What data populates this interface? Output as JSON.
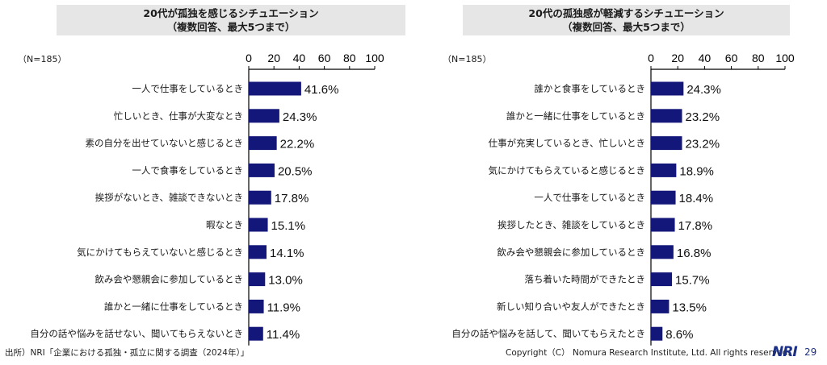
{
  "colors": {
    "bar": "#14177a",
    "title_bg": "#e6e6e6",
    "logo": "#1c2f86"
  },
  "chart_data": [
    {
      "type": "bar",
      "orientation": "horizontal",
      "title_lines": [
        "20代が孤独を感じるシチュエーション",
        "（複数回答、最大5つまで）"
      ],
      "sample_label": "（N=185）",
      "xlim": [
        0,
        100
      ],
      "xticks": [
        "0",
        "20",
        "40",
        "60",
        "80",
        "100"
      ],
      "grid": false,
      "categories": [
        "一人で仕事をしているとき",
        "忙しいとき、仕事が大変なとき",
        "素の自分を出せていないと感じるとき",
        "一人で食事をしているとき",
        "挨拶がないとき、雑談できないとき",
        "暇なとき",
        "気にかけてもらえていないと感じるとき",
        "飲み会や懇親会に参加しているとき",
        "誰かと一緒に仕事をしているとき",
        "自分の話や悩みを話せない、聞いてもらえないとき"
      ],
      "values": [
        41.6,
        24.3,
        22.2,
        20.5,
        17.8,
        15.1,
        14.1,
        13.0,
        11.9,
        11.4
      ],
      "value_labels": [
        "41.6%",
        "24.3%",
        "22.2%",
        "20.5%",
        "17.8%",
        "15.1%",
        "14.1%",
        "13.0%",
        "11.9%",
        "11.4%"
      ]
    },
    {
      "type": "bar",
      "orientation": "horizontal",
      "title_lines": [
        "20代の孤独感が軽減するシチュエーション",
        "（複数回答、最大5つまで）"
      ],
      "sample_label": "（N=185）",
      "xlim": [
        0,
        100
      ],
      "xticks": [
        "0",
        "20",
        "40",
        "60",
        "80",
        "100"
      ],
      "grid": false,
      "categories": [
        "誰かと食事をしているとき",
        "誰かと一緒に仕事をしているとき",
        "仕事が充実しているとき、忙しいとき",
        "気にかけてもらえていると感じるとき",
        "一人で仕事をしているとき",
        "挨拶したとき、雑談をしているとき",
        "飲み会や懇親会に参加しているとき",
        "落ち着いた時間ができたとき",
        "新しい知り合いや友人ができたとき",
        "自分の話や悩みを話して、聞いてもらえたとき"
      ],
      "values": [
        24.3,
        23.2,
        23.2,
        18.9,
        18.4,
        17.8,
        16.8,
        15.7,
        13.5,
        8.6
      ],
      "value_labels": [
        "24.3%",
        "23.2%",
        "23.2%",
        "18.9%",
        "18.4%",
        "17.8%",
        "16.8%",
        "15.7%",
        "13.5%",
        "8.6%"
      ]
    }
  ],
  "footer": {
    "source": "出所）NRI「企業における孤独・孤立に関する調査（2024年）」",
    "copyright": "Copyright（C） Nomura Research Institute, Ltd. All rights reserved.",
    "logo_text": "NRI",
    "page_number": "29"
  }
}
